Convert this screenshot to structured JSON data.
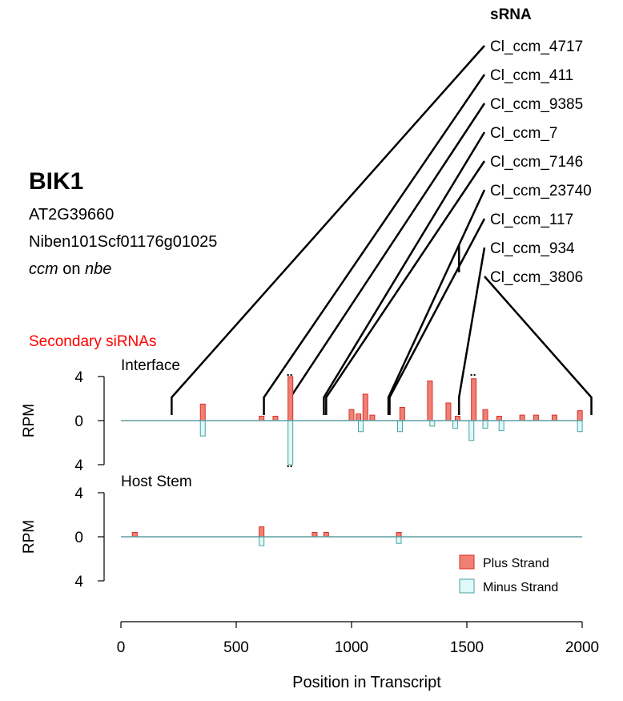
{
  "gene": {
    "name": "BIK1",
    "arabidopsis_id": "AT2G39660",
    "benthamiana_id": "Niben101Scf01176g01025",
    "interaction_species_a": "ccm",
    "interaction_on": "on",
    "interaction_species_b": "nbe"
  },
  "section_label": "Secondary siRNAs",
  "srna_header": "sRNA",
  "colors": {
    "plus_fill": "#f08075",
    "plus_stroke": "#d73027",
    "minus_fill": "#dff8f8",
    "minus_stroke": "#4aa3a3",
    "baseline": "#5f9ea0",
    "secondary": "#ff0000"
  },
  "legend": {
    "plus": "Plus Strand",
    "minus": "Minus Strand",
    "placement": "bottom-right"
  },
  "chart_data": [
    {
      "type": "bar",
      "title": "Interface",
      "ylabel": "RPM",
      "ylim": [
        -4,
        4
      ],
      "yticks": [
        "4",
        "0",
        "4"
      ],
      "plus": [
        [
          355,
          1.5
        ],
        [
          610,
          0.4
        ],
        [
          670,
          0.4
        ],
        [
          735,
          4.0
        ],
        [
          1000,
          1.0
        ],
        [
          1030,
          0.6
        ],
        [
          1060,
          2.4
        ],
        [
          1090,
          0.5
        ],
        [
          1220,
          1.2
        ],
        [
          1340,
          3.6
        ],
        [
          1420,
          1.6
        ],
        [
          1460,
          0.4
        ],
        [
          1530,
          3.8
        ],
        [
          1580,
          1.0
        ],
        [
          1640,
          0.4
        ],
        [
          1740,
          0.5
        ],
        [
          1800,
          0.5
        ],
        [
          1880,
          0.5
        ],
        [
          1990,
          0.9
        ]
      ],
      "minus": [
        [
          355,
          -1.4
        ],
        [
          735,
          -4.0
        ],
        [
          1040,
          -1.0
        ],
        [
          1210,
          -1.0
        ],
        [
          1350,
          -0.5
        ],
        [
          1450,
          -0.7
        ],
        [
          1520,
          -1.8
        ],
        [
          1580,
          -0.7
        ],
        [
          1650,
          -0.9
        ],
        [
          1990,
          -1.0
        ]
      ],
      "markers": [
        735,
        1530
      ],
      "srnas": [
        {
          "name": "Cl_ccm_4717",
          "pos": 220
        },
        {
          "name": "Cl_ccm_411",
          "pos": 620
        },
        {
          "name": "Cl_ccm_9385",
          "pos": 735
        },
        {
          "name": "Cl_ccm_7",
          "pos": 880
        },
        {
          "name": "Cl_ccm_7146",
          "pos": 890
        },
        {
          "name": "Cl_ccm_23740",
          "pos": 1160
        },
        {
          "name": "Cl_ccm_117",
          "pos": 1165
        },
        {
          "name": "Cl_ccm_934",
          "pos": 1466
        },
        {
          "name": "Cl_ccm_3806",
          "pos": 2040
        }
      ]
    },
    {
      "type": "bar",
      "title": "Host Stem",
      "ylabel": "RPM",
      "ylim": [
        -4,
        4
      ],
      "yticks": [
        "4",
        "0",
        "4"
      ],
      "plus": [
        [
          60,
          0.4
        ],
        [
          610,
          0.9
        ],
        [
          840,
          0.4
        ],
        [
          890,
          0.4
        ],
        [
          1205,
          0.4
        ]
      ],
      "minus": [
        [
          610,
          -0.8
        ],
        [
          1205,
          -0.6
        ]
      ],
      "markers": []
    }
  ],
  "xaxis": {
    "label": "Position in Transcript",
    "xlim": [
      0,
      2000
    ],
    "ticks": [
      0,
      500,
      1000,
      1500,
      2000
    ]
  }
}
